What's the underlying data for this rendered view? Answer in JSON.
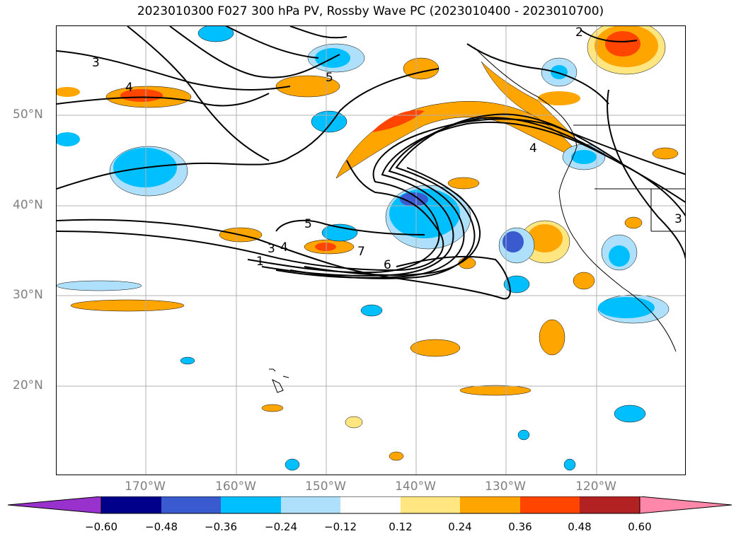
{
  "title": "2023010300 F027 300 hPa PV, Rossby Wave PC (2023010400 - 2023010700)",
  "colors": {
    "grid": "#b0b0b0",
    "contour": "#000000",
    "cb_neg_extend": "#9932cc",
    "cb_pos_extend": "#ff88aa",
    "levels": [
      "#9932cc",
      "#00008b",
      "#3a5bd0",
      "#00bfff",
      "#aee0fb",
      "#ffffff",
      "#ffe680",
      "#ffa500",
      "#ff4500",
      "#b22222",
      "#ff88aa"
    ]
  },
  "axes": {
    "lat_ticks": [
      "50°N",
      "40°N",
      "30°N",
      "20°N"
    ],
    "lon_ticks": [
      "170°W",
      "160°W",
      "150°W",
      "140°W",
      "130°W",
      "120°W"
    ]
  },
  "colorbar": {
    "tick_labels": [
      "−0.60",
      "−0.48",
      "−0.36",
      "−0.24",
      "−0.12",
      "0.12",
      "0.24",
      "0.36",
      "0.48",
      "0.60"
    ]
  },
  "contour_labels": [
    "3",
    "4",
    "5",
    "2",
    "4",
    "5",
    "3",
    "4",
    "1",
    "7",
    "6",
    "3"
  ]
}
